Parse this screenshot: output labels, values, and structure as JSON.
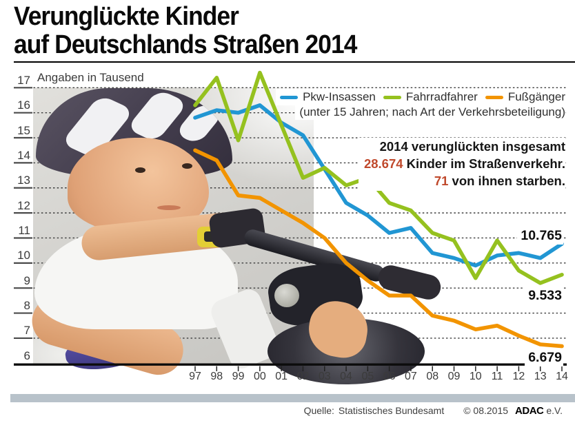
{
  "title": {
    "line1": "Verunglückte Kinder",
    "line2": "auf Deutschlands Straßen 2014"
  },
  "chart": {
    "y_axis_note": "Angaben in Tausend",
    "legend_note": "(unter 15 Jahren; nach Art der Verkehrsbeteiligung)",
    "annotation": {
      "line1": "2014 verunglückten insgesamt",
      "line2_highlight": "28.674",
      "line2_rest": " Kinder im Straßenverkehr.",
      "line3_highlight": "71",
      "line3_rest": " von ihnen starben.",
      "highlight_color": "#c0492c"
    }
  },
  "chart_data": {
    "type": "line",
    "title": "Verunglückte Kinder auf Deutschlands Straßen 2014",
    "unit_note": "Angaben in Tausend",
    "categories": [
      "97",
      "98",
      "99",
      "00",
      "01",
      "02",
      "03",
      "04",
      "05",
      "06",
      "07",
      "08",
      "09",
      "10",
      "11",
      "12",
      "13",
      "14"
    ],
    "ylim": [
      6,
      17
    ],
    "yticks": [
      6,
      7,
      8,
      9,
      10,
      11,
      12,
      13,
      14,
      15,
      16,
      17
    ],
    "grid": "horizontal dashed",
    "legend_position": "top-right",
    "series": [
      {
        "name": "Pkw-Insassen",
        "slug": "pkw-insassen",
        "color": "#2196d3",
        "end_label": "10.765",
        "values": [
          15.8,
          16.1,
          16.0,
          16.3,
          15.6,
          15.1,
          13.75,
          12.4,
          11.9,
          11.2,
          11.4,
          10.4,
          10.2,
          9.9,
          10.3,
          10.4,
          10.2,
          10.765
        ]
      },
      {
        "name": "Fahrradfahrer",
        "slug": "fahrradfahrer",
        "color": "#95c11f",
        "end_label": "9.533",
        "values": [
          16.3,
          17.4,
          14.9,
          17.6,
          15.5,
          13.4,
          13.8,
          13.1,
          13.4,
          12.4,
          12.1,
          11.2,
          10.9,
          9.4,
          10.9,
          9.7,
          9.2,
          9.533
        ]
      },
      {
        "name": "Fußgänger",
        "slug": "fussgaenger",
        "color": "#f29400",
        "end_label": "6.679",
        "values": [
          14.5,
          14.1,
          12.7,
          12.6,
          12.1,
          11.6,
          11.0,
          10.0,
          9.3,
          8.7,
          8.7,
          7.9,
          7.7,
          7.35,
          7.5,
          7.1,
          6.75,
          6.679
        ]
      }
    ],
    "draw_order": [
      0,
      2,
      1
    ]
  },
  "footer": {
    "source_label": "Quelle:",
    "source": "Statistisches Bundesamt",
    "copyright": "© 08.2015",
    "brand": "ADAC",
    "brand_suffix": "e.V."
  }
}
